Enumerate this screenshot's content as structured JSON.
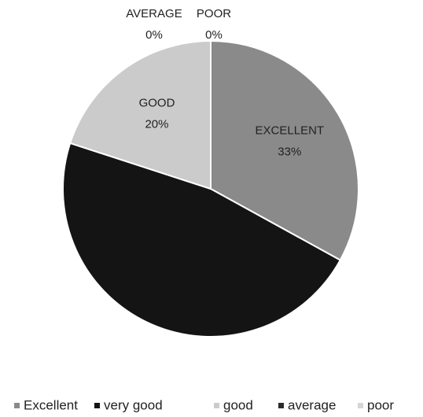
{
  "chart_data": {
    "type": "pie",
    "categories": [
      "Excellent",
      "very good",
      "good",
      "average",
      "poor"
    ],
    "values": [
      33,
      47,
      20,
      0,
      0
    ],
    "value_labels": [
      "33%",
      null,
      "20%",
      "0%",
      "0%"
    ],
    "label_names": [
      "EXCELLENT",
      null,
      "GOOD",
      "AVERAGE",
      "POOR"
    ],
    "colors": [
      "#8a8a8a",
      "#141414",
      "#cbcbcb",
      "#2a2a2a",
      "#d6d6d6"
    ],
    "legend": "bottom"
  }
}
